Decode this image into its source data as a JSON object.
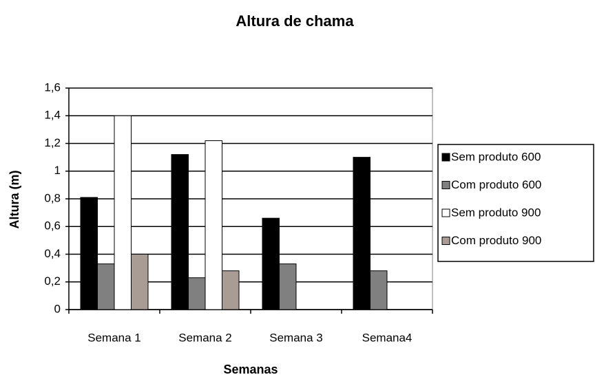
{
  "chart_data": {
    "type": "bar",
    "title": "Altura de chama",
    "x_label": "Semanas",
    "y_label": "Altura (m)",
    "categories": [
      "Semana 1",
      "Semana 2",
      "Semana 3",
      "Semana4"
    ],
    "series": [
      {
        "name": "Sem produto 600",
        "color": "#000000",
        "values": [
          0.81,
          1.12,
          0.66,
          1.1
        ]
      },
      {
        "name": "Com produto 600",
        "color": "#808080",
        "values": [
          0.33,
          0.23,
          0.33,
          0.28
        ]
      },
      {
        "name": "Sem produto 900",
        "color": "#ffffff",
        "values": [
          1.4,
          1.22,
          null,
          null
        ]
      },
      {
        "name": "Com produto 900",
        "color": "#a89c94",
        "values": [
          0.4,
          0.28,
          null,
          null
        ]
      }
    ],
    "ylim": [
      0,
      1.6
    ],
    "yticks": [
      0,
      {
        "value": 0.2,
        "label": "0,2"
      },
      {
        "value": 0.4,
        "label": "0,4"
      },
      {
        "value": 0.6,
        "label": "0,6"
      },
      {
        "value": 0.8,
        "label": "0,8"
      },
      1,
      {
        "value": 1.2,
        "label": "1,2"
      },
      {
        "value": 1.4,
        "label": "1,4"
      },
      {
        "value": 1.6,
        "label": "1,6"
      }
    ],
    "grid": true,
    "legend": "right"
  }
}
